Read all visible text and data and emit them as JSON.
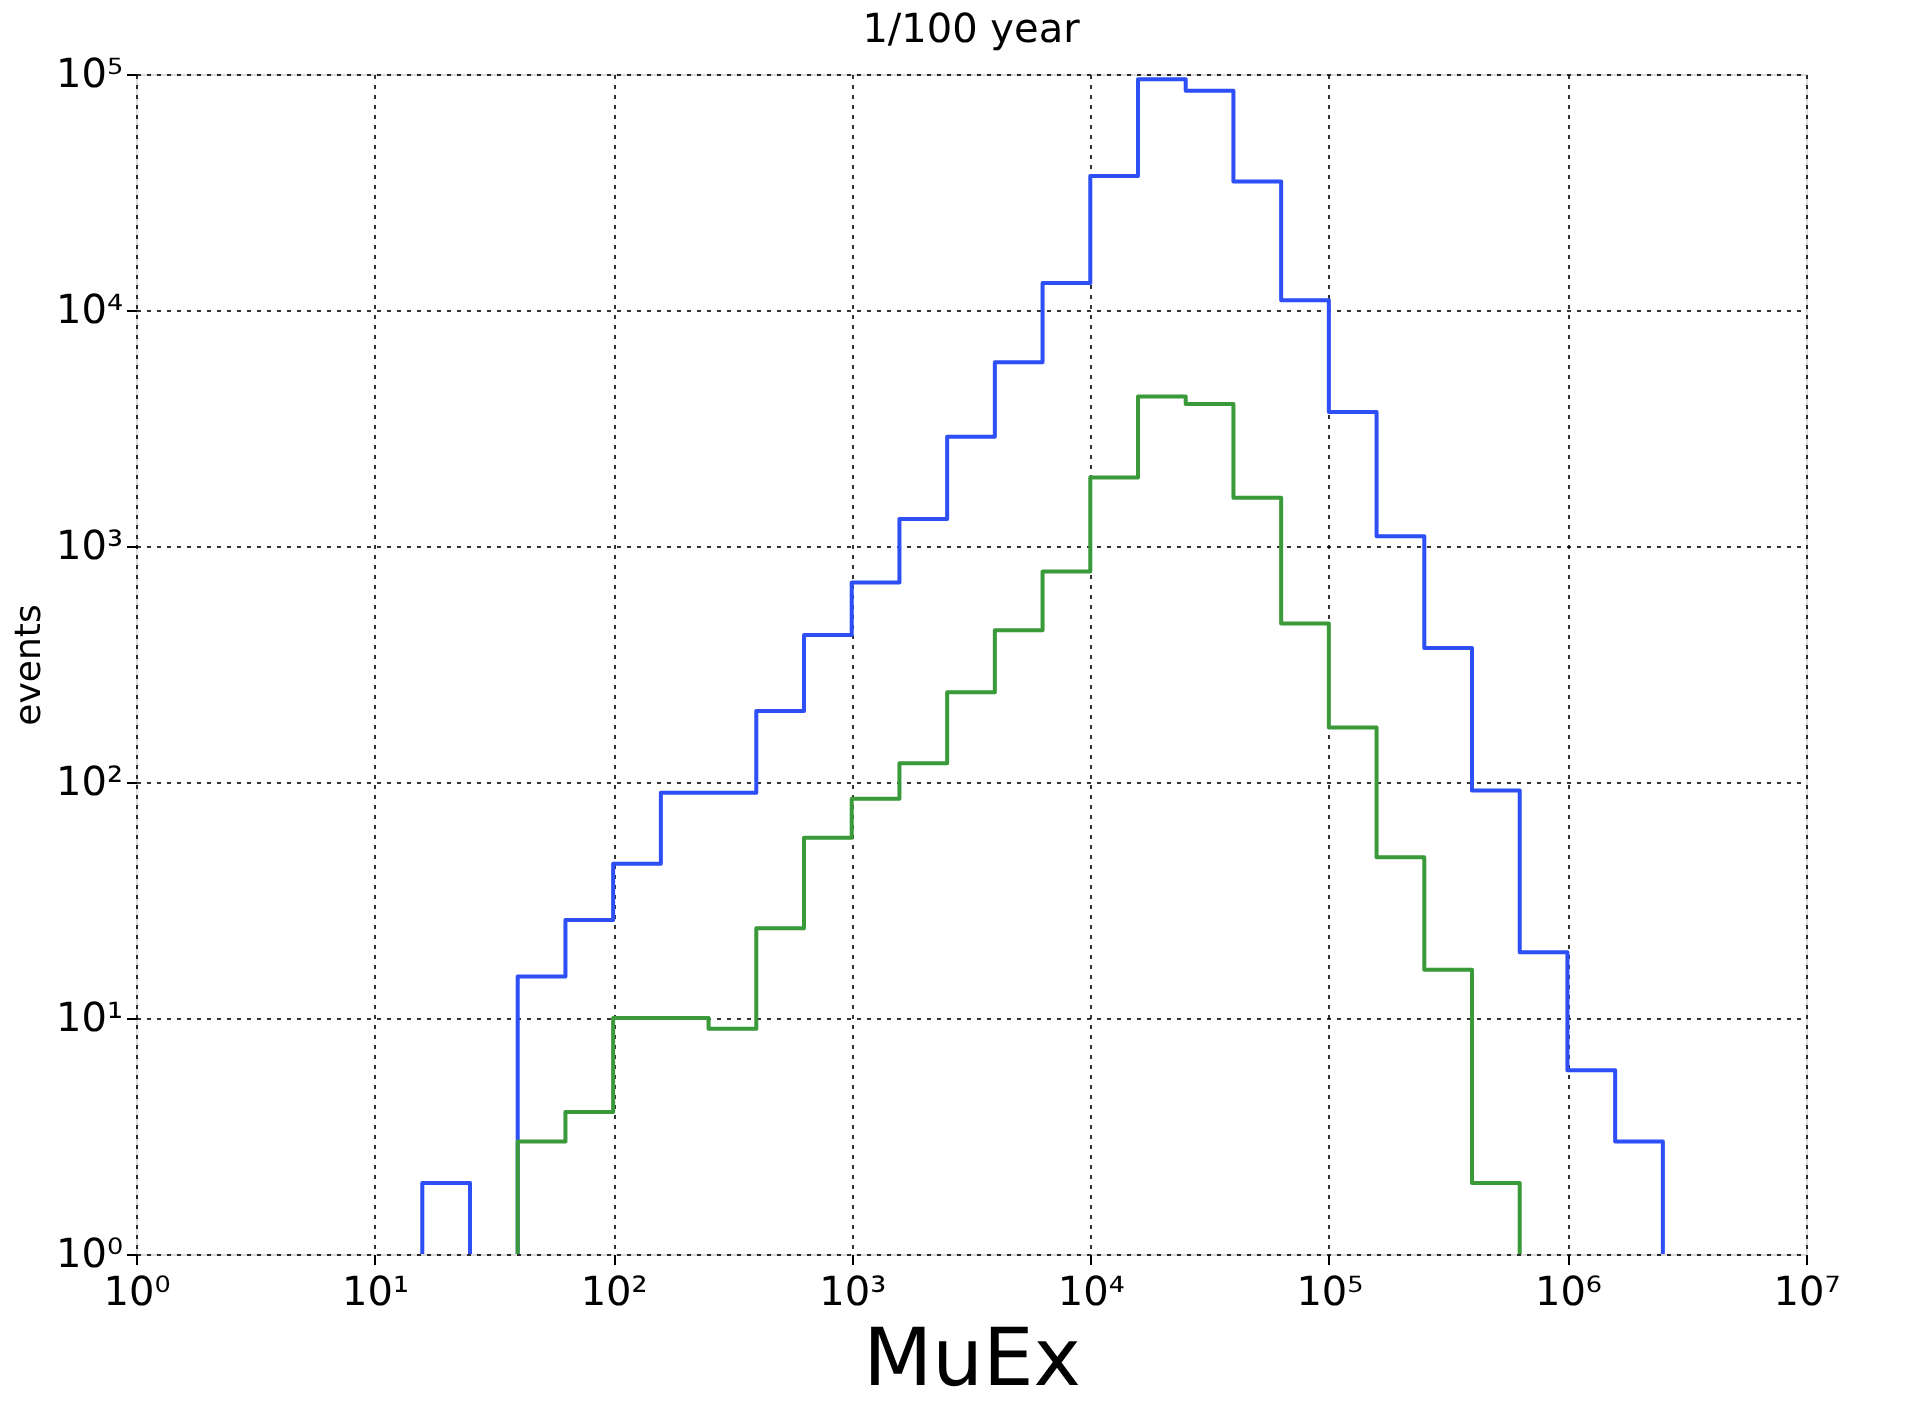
{
  "chart_data": {
    "type": "histogram",
    "title": "1/100 year",
    "xlabel": "MuEx",
    "ylabel": "events",
    "log": "xy",
    "grid": true,
    "legend": false,
    "line_style": "solid",
    "bins": [
      15.85,
      25.12,
      39.81,
      63.1,
      100,
      158.5,
      251.2,
      398.1,
      631,
      1000,
      1585,
      2512,
      3981,
      6310,
      10000,
      15850,
      25120,
      39810,
      63100,
      100000,
      158500,
      251200,
      398100,
      631000,
      1000000,
      1585000,
      2512000
    ],
    "series": [
      {
        "color": "#2e4ff5",
        "values": [
          2,
          null,
          15,
          26,
          45,
          90,
          90,
          200,
          420,
          700,
          1300,
          2900,
          6000,
          13000,
          37000,
          95000,
          85000,
          35000,
          11000,
          3700,
          1100,
          370,
          92,
          19,
          6,
          3
        ]
      },
      {
        "color": "#3a9a3a",
        "bins": [
          39.81,
          63.1,
          100,
          158.5,
          251.2,
          398.1,
          631,
          1000,
          1585,
          2512,
          3981,
          6310,
          10000,
          15850,
          25120,
          39810,
          63100,
          100000,
          158500,
          251200,
          398100,
          631000
        ],
        "values": [
          3,
          4,
          10,
          10,
          9,
          24,
          58,
          85,
          120,
          240,
          440,
          780,
          1950,
          4300,
          4000,
          1600,
          470,
          170,
          48,
          16,
          2
        ]
      }
    ],
    "xlim": [
      1,
      10000000
    ],
    "ylim": [
      1,
      100000
    ],
    "xticks": [
      {
        "value": 1,
        "label": "10⁰"
      },
      {
        "value": 10,
        "label": "10¹"
      },
      {
        "value": 100,
        "label": "10²"
      },
      {
        "value": 1000,
        "label": "10³"
      },
      {
        "value": 10000,
        "label": "10⁴"
      },
      {
        "value": 100000,
        "label": "10⁵"
      },
      {
        "value": 1000000,
        "label": "10⁶"
      },
      {
        "value": 10000000,
        "label": "10⁷"
      }
    ],
    "yticks": [
      {
        "value": 1,
        "label": "10⁰"
      },
      {
        "value": 10,
        "label": "10¹"
      },
      {
        "value": 100,
        "label": "10²"
      },
      {
        "value": 1000,
        "label": "10³"
      },
      {
        "value": 10000,
        "label": "10⁴"
      },
      {
        "value": 100000,
        "label": "10⁵"
      }
    ]
  }
}
